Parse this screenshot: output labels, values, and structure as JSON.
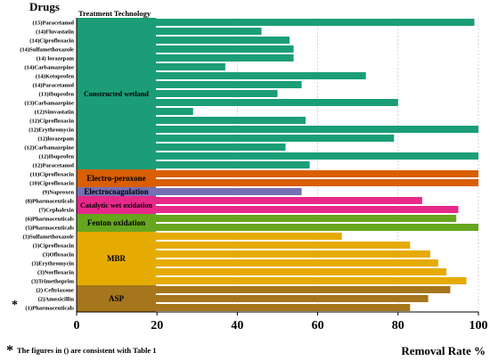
{
  "chart_data": {
    "type": "bar",
    "orientation": "horizontal",
    "title": "Drugs",
    "xlabel": "Removal Rate %",
    "xlim": [
      0,
      100
    ],
    "xticks": [
      "0",
      "20",
      "40",
      "60",
      "80",
      "100"
    ],
    "grid": "vertical dashed",
    "footnote_marker": "*",
    "footnote": "The figures in () are consistent with Table 1",
    "technology_header": "Treatment Technology",
    "categories": [
      "(15)Paracetamol",
      "(14)Fluvastatin",
      "(14)Ciprofloxacin",
      "(14)Sulfamethoxazole",
      "(14) lorazepam",
      "(14)Carbamazepine",
      "(14)Ketoprofen",
      "(14)Paracetamol",
      "(13)Ibuprofen",
      "(13)Carbamazepine",
      "(12)Simvastatin",
      "(12)Ciprofloxacin",
      "(12)Erythromycin",
      "(12)lorazepam",
      "(12)Carbamazepine",
      "(12)Ibuprofen",
      "(12)Paracetamol",
      "(11)Ciprofloxacin",
      "(10)Ciprofloxacin",
      "(9)Naproxen",
      "(8)Pharmaceuticals",
      "(7)Cephalexin",
      "(6)Pharmaceuticals",
      "(5)Pharmaceuticals",
      "(3)Sulfamethoxazole",
      "(3)Ciprofloxacin",
      "(3)Ofloxacin",
      "(3)Erythromycin",
      "(3)Norfloxacin",
      "(3)Trimethoprim",
      "(2) Ceftriaxone",
      "(2)Amoxicillin",
      "(1)Pharmaceuticals"
    ],
    "values": [
      99,
      46,
      53,
      54,
      54,
      37,
      72,
      56,
      50,
      80,
      29,
      57,
      100,
      79,
      52,
      100,
      58,
      100,
      100,
      56,
      86,
      95,
      94.5,
      100,
      66,
      83,
      88,
      90,
      92,
      97,
      93,
      87.5,
      83
    ],
    "groups": [
      {
        "name": "Constructed wetland",
        "start": 0,
        "end": 16,
        "color": "#1b9e77"
      },
      {
        "name": "Electro-peroxone",
        "start": 17,
        "end": 18,
        "color": "#d95f02"
      },
      {
        "name": "Electrocoagulation",
        "start": 19,
        "end": 19,
        "color": "#7570b3"
      },
      {
        "name": "Catalytic wet oxidation",
        "start": 20,
        "end": 21,
        "color": "#e7298a"
      },
      {
        "name": "Fenton oxidation",
        "start": 22,
        "end": 23,
        "color": "#66a61e"
      },
      {
        "name": "MBR",
        "start": 24,
        "end": 29,
        "color": "#e6ab02"
      },
      {
        "name": "ASP",
        "start": 30,
        "end": 32,
        "color": "#a6761d"
      }
    ]
  }
}
